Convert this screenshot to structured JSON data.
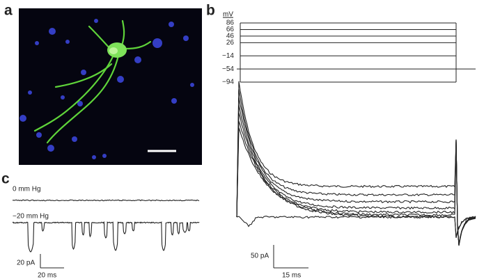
{
  "panels": [
    {
      "label": "a"
    },
    {
      "label": "b",
      "unit": "mV",
      "steps": [
        86,
        66,
        46,
        26,
        {
          "value": -14,
          "label": "−14"
        },
        {
          "value": -54,
          "label": "−54"
        },
        {
          "value": -94,
          "label": "−94"
        }
      ],
      "scale_current": "50 pA",
      "scale_time": "15 ms"
    },
    {
      "label": "c",
      "trace_labels": [
        "0 mm Hg",
        "−20 mm Hg"
      ],
      "scale_current": "20 pA",
      "scale_time": "20 ms"
    }
  ]
}
